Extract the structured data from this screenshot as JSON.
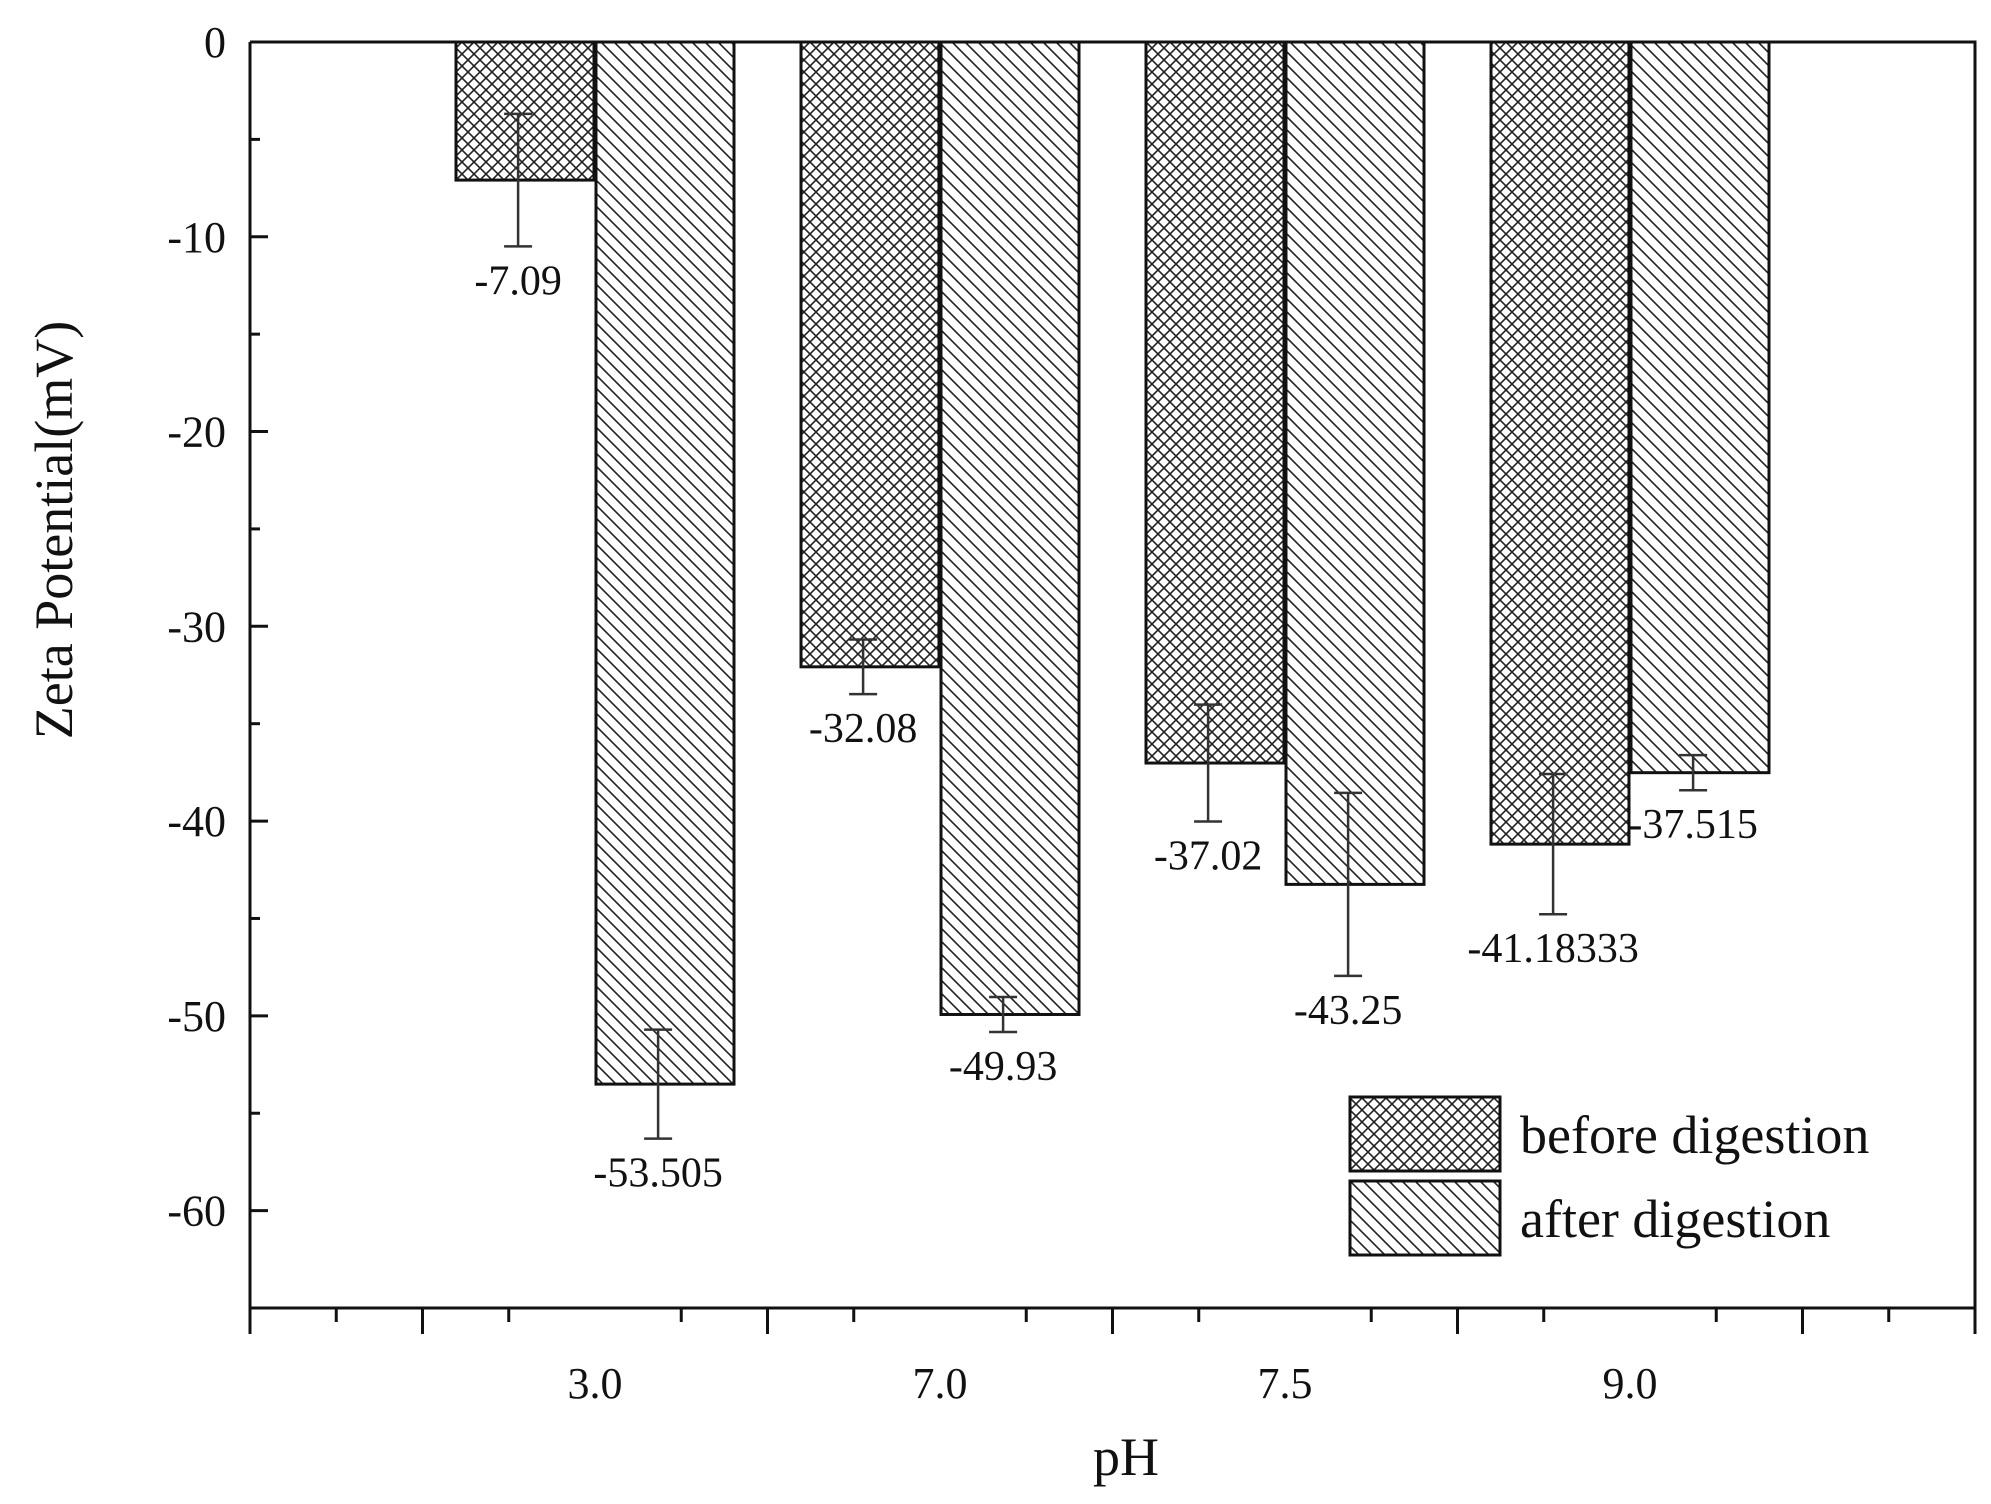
{
  "chart_data": {
    "type": "bar",
    "xlabel": "pH",
    "ylabel": "Zeta Potential(mV)",
    "categories": [
      "3.0",
      "7.0",
      "7.5",
      "9.0"
    ],
    "ylim": [
      -65,
      0
    ],
    "yticks": [
      0,
      -10,
      -20,
      -30,
      -40,
      -50,
      -60
    ],
    "series": [
      {
        "name": "before digestion",
        "pattern": "crosshatch",
        "values": [
          -7.09,
          -32.08,
          -37.02,
          -41.18333
        ],
        "labels": [
          "-7.09",
          "-32.08",
          "-37.02",
          "-41.18333"
        ],
        "errors": [
          3.4,
          1.4,
          3.0,
          3.6
        ]
      },
      {
        "name": "after digestion",
        "pattern": "diagonal",
        "values": [
          -53.505,
          -49.93,
          -43.25,
          -37.515
        ],
        "labels": [
          "-53.505",
          "-49.93",
          "-43.25",
          "-37.515"
        ],
        "errors": [
          2.8,
          0.9,
          4.7,
          0.9
        ]
      }
    ],
    "legend_position": "bottom-right",
    "grid": false
  }
}
